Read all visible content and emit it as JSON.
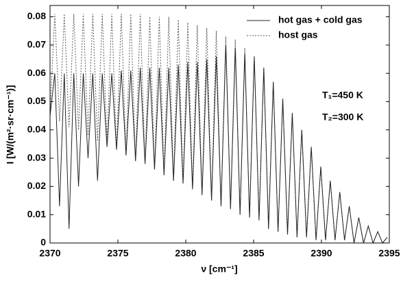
{
  "chart_data": {
    "type": "line",
    "xlabel": "ν [cm⁻¹]",
    "ylabel": "I [W/(m²·sr·cm⁻¹)]",
    "annotations": [
      "T₁=450 K",
      "T₂=300 K"
    ],
    "x": [
      2370.0,
      2370.35,
      2370.7,
      2371.05,
      2371.4,
      2371.75,
      2372.1,
      2372.45,
      2372.8,
      2373.15,
      2373.5,
      2373.85,
      2374.2,
      2374.55,
      2374.9,
      2375.25,
      2375.6,
      2375.95,
      2376.3,
      2376.65,
      2377.0,
      2377.35,
      2377.7,
      2378.05,
      2378.4,
      2378.75,
      2379.1,
      2379.45,
      2379.8,
      2380.15,
      2380.5,
      2380.85,
      2381.2,
      2381.55,
      2381.9,
      2382.25,
      2382.6,
      2382.95,
      2383.3,
      2383.65,
      2384.0,
      2384.35,
      2384.7,
      2385.05,
      2385.4,
      2385.75,
      2386.1,
      2386.45,
      2386.8,
      2387.15,
      2387.5,
      2387.85,
      2388.2,
      2388.55,
      2388.9,
      2389.25,
      2389.6,
      2389.95,
      2390.3,
      2390.65,
      2391.0,
      2391.35,
      2391.7,
      2392.05,
      2392.4,
      2392.75,
      2393.1,
      2393.45,
      2393.8,
      2394.15,
      2394.5,
      2394.85
    ],
    "series": [
      {
        "name": "hot gas + cold gas",
        "color": "#222222",
        "dash": "none",
        "values": [
          0.045,
          0.06,
          0.013,
          0.06,
          0.005,
          0.06,
          0.02,
          0.06,
          0.03,
          0.06,
          0.022,
          0.06,
          0.034,
          0.06,
          0.033,
          0.061,
          0.031,
          0.061,
          0.029,
          0.062,
          0.028,
          0.062,
          0.026,
          0.062,
          0.024,
          0.062,
          0.022,
          0.063,
          0.021,
          0.064,
          0.019,
          0.064,
          0.017,
          0.065,
          0.015,
          0.066,
          0.013,
          0.07,
          0.012,
          0.069,
          0.01,
          0.067,
          0.009,
          0.066,
          0.008,
          0.062,
          0.005,
          0.057,
          0.004,
          0.051,
          0.003,
          0.046,
          0.002,
          0.04,
          0.002,
          0.034,
          0.001,
          0.027,
          0.001,
          0.022,
          0.001,
          0.018,
          0.001,
          0.013,
          0,
          0.009,
          0,
          0.006,
          0,
          0.004,
          0,
          0.002
        ]
      },
      {
        "name": "host gas",
        "color": "#555555",
        "dash": "2,2",
        "values": [
          0.045,
          0.081,
          0.043,
          0.081,
          0.041,
          0.081,
          0.04,
          0.081,
          0.038,
          0.081,
          0.036,
          0.081,
          0.035,
          0.081,
          0.033,
          0.081,
          0.031,
          0.081,
          0.029,
          0.081,
          0.028,
          0.08,
          0.026,
          0.08,
          0.024,
          0.08,
          0.022,
          0.079,
          0.021,
          0.078,
          0.019,
          0.077,
          0.017,
          0.076,
          0.015,
          0.075,
          0.013,
          0.073,
          0.012,
          0.072,
          0.01,
          0.069,
          0.009,
          0.066,
          0.008,
          0.062,
          0.005,
          0.057,
          0.004,
          0.051,
          0.003,
          0.046,
          0.002,
          0.04,
          0.002,
          0.034,
          0.001,
          0.027,
          0.001,
          0.022,
          0.001,
          0.018,
          0.001,
          0.013,
          0,
          0.009,
          0,
          0.006,
          0,
          0.004,
          0,
          0.002
        ]
      }
    ],
    "xlim": [
      2370,
      2395
    ],
    "xticks": [
      2370,
      2375,
      2380,
      2385,
      2390,
      2395
    ],
    "ylim": [
      0,
      0.084
    ],
    "yticks": [
      0,
      0.01,
      0.02,
      0.03,
      0.04,
      0.05,
      0.06,
      0.07,
      0.08
    ],
    "legend": "upper right"
  }
}
